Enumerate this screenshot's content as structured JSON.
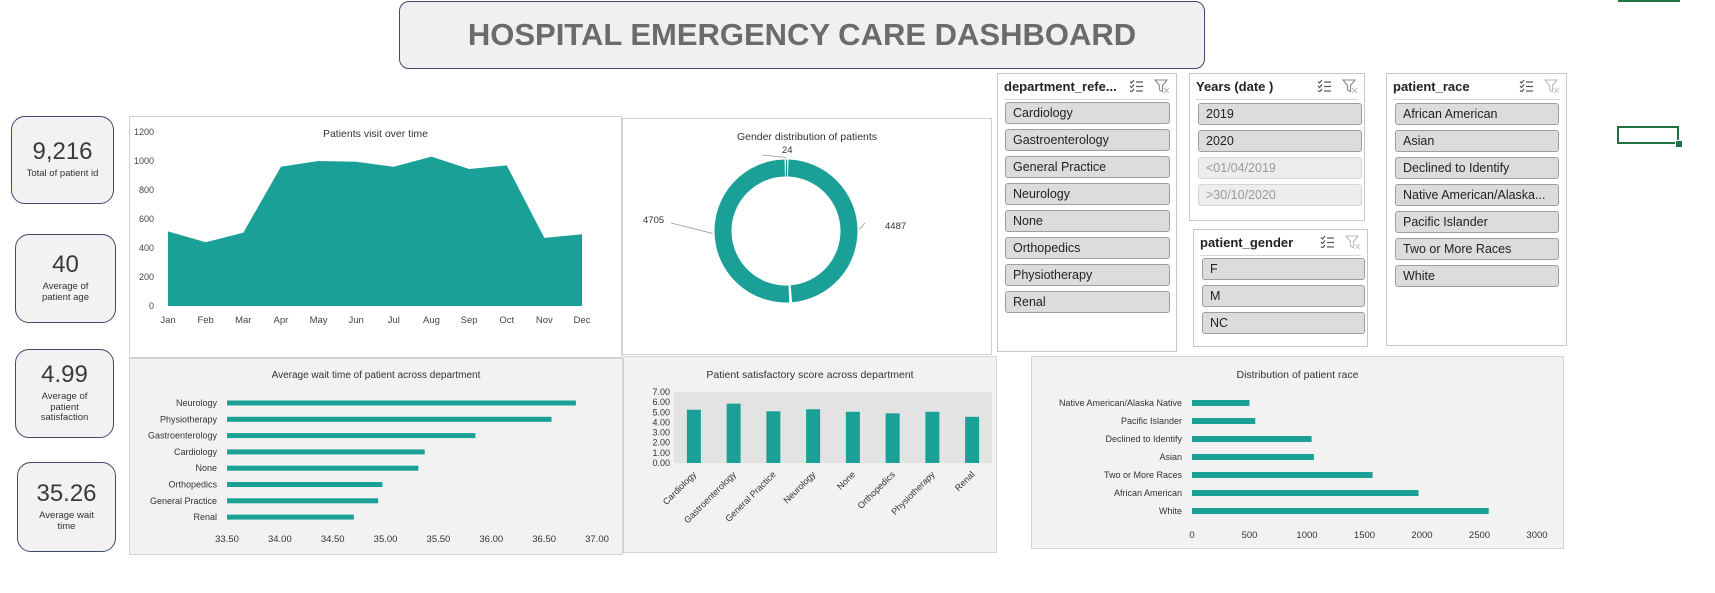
{
  "dashboard": {
    "title": "HOSPITAL EMERGENCY CARE DASHBOARD"
  },
  "kpis": [
    {
      "value": "9,216",
      "label": "Total of patient id"
    },
    {
      "value": "40",
      "label": "Average of patient age"
    },
    {
      "value": "4.99",
      "label": "Average of patient satisfaction"
    },
    {
      "value": "35.26",
      "label": "Average wait time"
    }
  ],
  "colors": {
    "teal": "#1aa096",
    "accent_green": "#217346",
    "panel_grey": "#f2f2f2"
  },
  "slicers": {
    "department": {
      "header": "department_refe...",
      "items": [
        "Cardiology",
        "Gastroenterology",
        "General Practice",
        "Neurology",
        "None",
        "Orthopedics",
        "Physiotherapy",
        "Renal"
      ]
    },
    "years": {
      "header": "Years (date )",
      "items": [
        "2019",
        "2020",
        "<01/04/2019",
        ">30/10/2020"
      ]
    },
    "gender": {
      "header": "patient_gender",
      "items": [
        "F",
        "M",
        "NC"
      ]
    },
    "race": {
      "header": "patient_race",
      "items": [
        "African American",
        "Asian",
        "Declined to Identify",
        "Native American/Alaska...",
        "Pacific Islander",
        "Two or More Races",
        "White"
      ]
    }
  },
  "chart_data": [
    {
      "type": "area",
      "title": "Patients visit over time",
      "categories": [
        "Jan",
        "Feb",
        "Mar",
        "Apr",
        "May",
        "Jun",
        "Jul",
        "Aug",
        "Sep",
        "Oct",
        "Nov",
        "Dec"
      ],
      "values": [
        515,
        440,
        505,
        960,
        1000,
        995,
        960,
        1030,
        945,
        970,
        470,
        495
      ],
      "ylim": [
        0,
        1200
      ],
      "yticks": [
        "0",
        "200",
        "400",
        "600",
        "800",
        "1000",
        "1200"
      ],
      "color": "#1aa096"
    },
    {
      "type": "pie",
      "title": "Gender distribution of patients",
      "labels": [
        "24",
        "4487",
        "4705"
      ],
      "values": [
        24,
        4487,
        4705
      ],
      "color": "#1aa096"
    },
    {
      "type": "bar",
      "title": "Average wait time of patient across department",
      "categories": [
        "Neurology",
        "Physiotherapy",
        "Gastroenterology",
        "Cardiology",
        "None",
        "Orthopedics",
        "General Practice",
        "Renal"
      ],
      "values": [
        36.8,
        36.57,
        35.85,
        35.37,
        35.31,
        34.97,
        34.93,
        34.7
      ],
      "xlim": [
        33.5,
        37.0
      ],
      "xticks": [
        "33.50",
        "34.00",
        "34.50",
        "35.00",
        "35.50",
        "36.00",
        "36.50",
        "37.00"
      ],
      "color": "#1aa096"
    },
    {
      "type": "bar",
      "title": "Patient satisfactory score across department",
      "categories": [
        "Cardiology",
        "Gastroenterology",
        "General Practice",
        "Neurology",
        "None",
        "Orthopedics",
        "Physiotherapy",
        "Renal"
      ],
      "values": [
        5.25,
        5.85,
        5.1,
        5.3,
        5.05,
        4.9,
        5.05,
        4.55
      ],
      "ylim": [
        0,
        7
      ],
      "yticks": [
        "0.00",
        "1.00",
        "2.00",
        "3.00",
        "4.00",
        "5.00",
        "6.00",
        "7.00"
      ],
      "color": "#1aa096"
    },
    {
      "type": "bar",
      "title": "Distribution of patient race",
      "categories": [
        "Native American/Alaska Native",
        "Pacific Islander",
        "Declined to Identify",
        "Asian",
        "Two or More Races",
        "African American",
        "White"
      ],
      "values": [
        500,
        550,
        1040,
        1060,
        1570,
        1970,
        2580
      ],
      "xlim": [
        0,
        3000
      ],
      "xticks": [
        "0",
        "500",
        "1000",
        "1500",
        "2000",
        "2500",
        "3000"
      ],
      "color": "#1aa096"
    }
  ]
}
